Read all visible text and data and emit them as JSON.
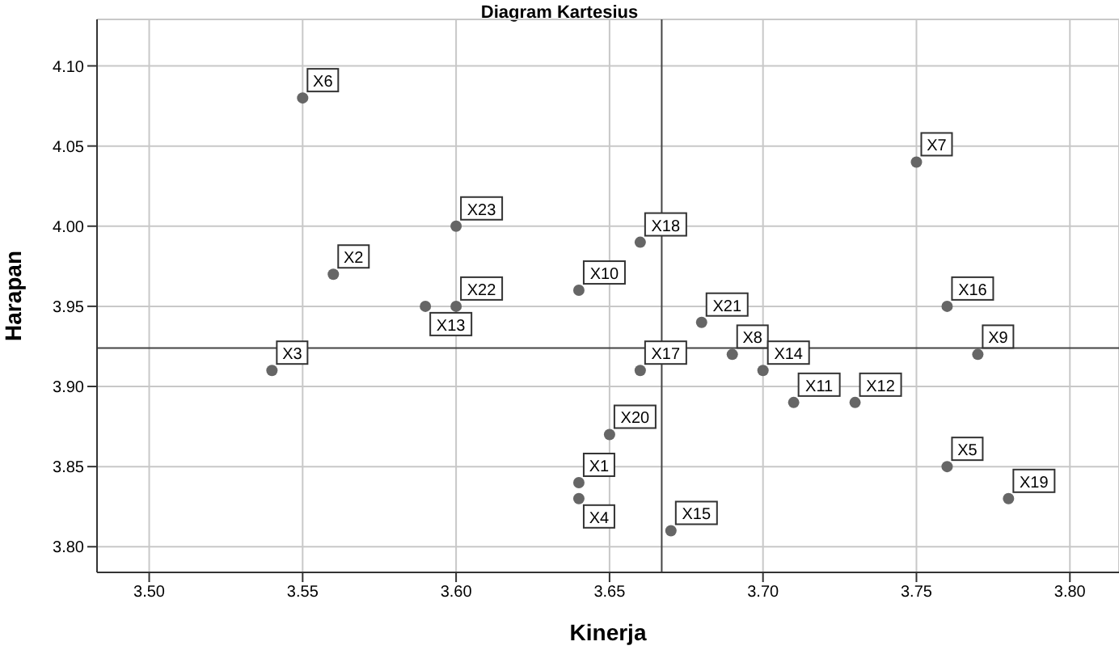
{
  "chart_data": {
    "type": "scatter",
    "title": "Diagram Kartesius",
    "xlabel": "Kinerja",
    "ylabel": "Harapan",
    "x": [
      3.64,
      3.56,
      3.54,
      3.64,
      3.76,
      3.55,
      3.75,
      3.69,
      3.77,
      3.64,
      3.71,
      3.73,
      3.59,
      3.7,
      3.67,
      3.76,
      3.66,
      3.66,
      3.78,
      3.65,
      3.68,
      3.6,
      3.6
    ],
    "series": [
      {
        "color": "#666666",
        "values": [
          3.84,
          3.97,
          3.91,
          3.83,
          3.85,
          4.08,
          4.04,
          3.92,
          3.92,
          3.96,
          3.89,
          3.89,
          3.95,
          3.91,
          3.81,
          3.95,
          3.91,
          3.99,
          3.83,
          3.87,
          3.94,
          3.95,
          4.0
        ],
        "value_labels": [
          "X1",
          "X2",
          "X3",
          "X4",
          "X5",
          "X6",
          "X7",
          "X8",
          "X9",
          "X10",
          "X11",
          "X12",
          "X13",
          "X14",
          "X15",
          "X16",
          "X17",
          "X18",
          "X19",
          "X20",
          "X21",
          "X22",
          "X23"
        ]
      }
    ],
    "xlim": [
      3.483,
      3.816
    ],
    "ylim": [
      3.784,
      4.129
    ],
    "xticks": [
      {
        "value": 3.5,
        "label": "3.50"
      },
      {
        "value": 3.55,
        "label": "3.55"
      },
      {
        "value": 3.6,
        "label": "3.60"
      },
      {
        "value": 3.65,
        "label": "3.65"
      },
      {
        "value": 3.7,
        "label": "3.70"
      },
      {
        "value": 3.75,
        "label": "3.75"
      },
      {
        "value": 3.8,
        "label": "3.80"
      }
    ],
    "yticks": [
      {
        "value": 3.8,
        "label": "3.80"
      },
      {
        "value": 3.85,
        "label": "3.85"
      },
      {
        "value": 3.9,
        "label": "3.90"
      },
      {
        "value": 3.95,
        "label": "3.95"
      },
      {
        "value": 4.0,
        "label": "4.00"
      },
      {
        "value": 4.05,
        "label": "4.05"
      },
      {
        "value": 4.1,
        "label": "4.10"
      }
    ],
    "ref_lines": [
      {
        "axis": "x",
        "value": 3.667,
        "color": "#444444"
      },
      {
        "axis": "y",
        "value": 3.924,
        "color": "#444444"
      }
    ],
    "grid": true,
    "marker": "circle"
  }
}
